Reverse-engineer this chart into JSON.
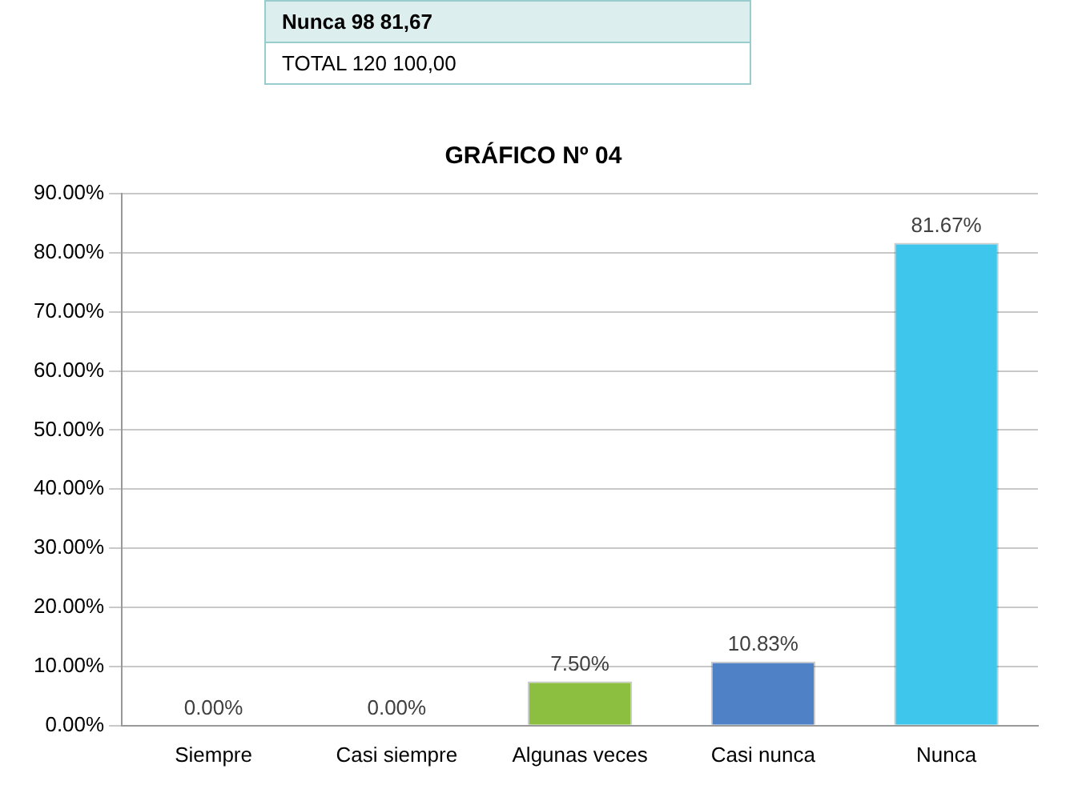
{
  "chart_data": {
    "type": "bar",
    "title": "GRÁFICO Nº 04",
    "categories": [
      "Siempre",
      "Casi siempre",
      "Algunas veces",
      "Casi nunca",
      "Nunca"
    ],
    "values": [
      0,
      0,
      7.5,
      10.83,
      81.67
    ],
    "colors": [
      "#c8c81e",
      "#8b4513",
      "#8cbf3f",
      "#4f81c7",
      "#3ec6ec"
    ],
    "value_labels": [
      "0.00%",
      "0.00%",
      "7.50%",
      "10.83%",
      "81.67%"
    ],
    "ylim": [
      0,
      90
    ],
    "yticks": [
      {
        "value": 0,
        "label": "0.00%"
      },
      {
        "value": 10,
        "label": "10.00%"
      },
      {
        "value": 20,
        "label": "20.00%"
      },
      {
        "value": 30,
        "label": "30.00%"
      },
      {
        "value": 40,
        "label": "40.00%"
      },
      {
        "value": 50,
        "label": "50.00%"
      },
      {
        "value": 60,
        "label": "60.00%"
      },
      {
        "value": 70,
        "label": "70.00%"
      },
      {
        "value": 80,
        "label": "80.00%"
      },
      {
        "value": 90,
        "label": "90.00%"
      }
    ],
    "grid": "y",
    "legend": false,
    "annotations": [
      "Nunca 98 81,67",
      "TOTAL 120 100,00"
    ]
  }
}
